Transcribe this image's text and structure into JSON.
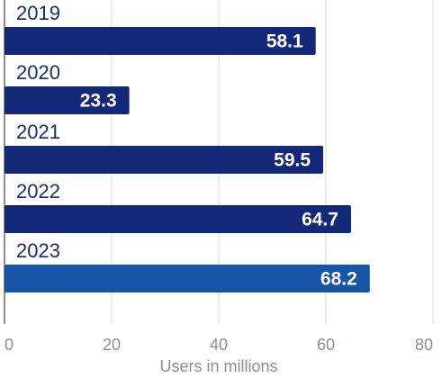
{
  "chart_data": {
    "type": "bar",
    "orientation": "horizontal",
    "categories": [
      "2019",
      "2020",
      "2021",
      "2022",
      "2023"
    ],
    "values": [
      58.1,
      23.3,
      59.5,
      64.7,
      68.2
    ],
    "value_labels": [
      "58.1",
      "23.3",
      "59.5",
      "64.7",
      "68.2"
    ],
    "xlabel": "Users in millions",
    "ylabel": "",
    "xlim": [
      0,
      80
    ],
    "x_ticks": [
      0,
      20,
      40,
      60,
      80
    ],
    "x_tick_labels": [
      "0",
      "20",
      "40",
      "60",
      "80"
    ],
    "grid": "vertical",
    "bar_colors": [
      "#14287a",
      "#14287a",
      "#14287a",
      "#14287a",
      "#1756a6"
    ]
  }
}
